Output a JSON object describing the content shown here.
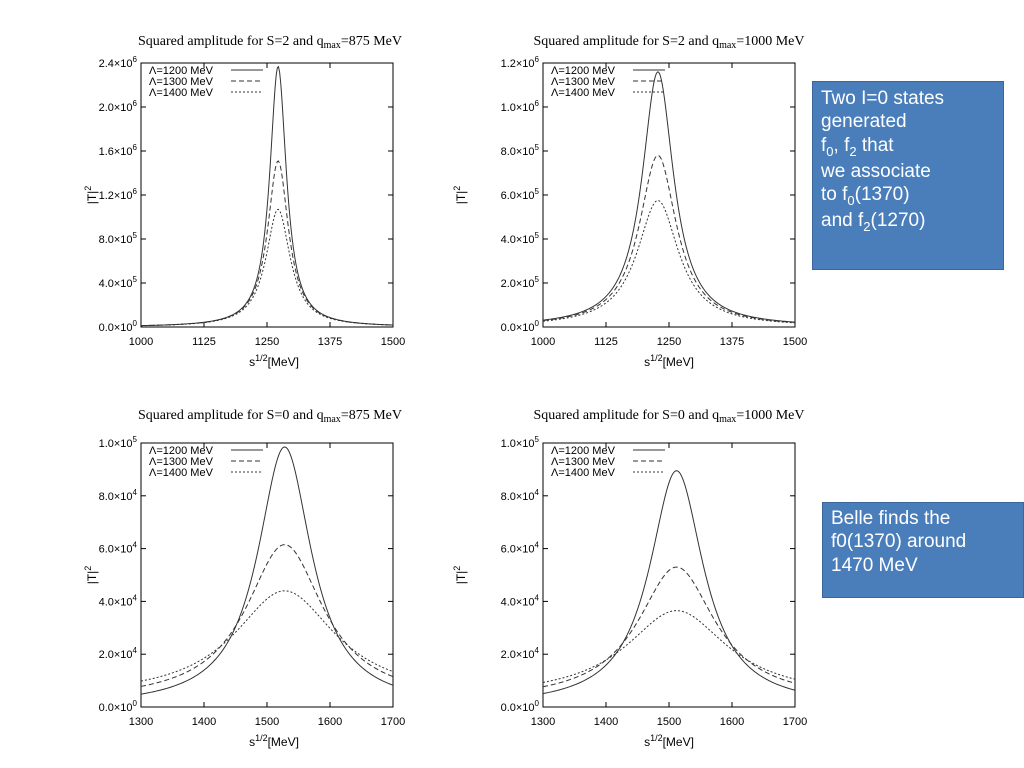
{
  "chart_data": [
    {
      "type": "line",
      "title": {
        "pre": "Squared amplitude for S=2 and q",
        "sub": "max",
        "post": "=875 MeV"
      },
      "xlabel": {
        "base": "s",
        "sup": "1/2",
        "post": "[MeV]"
      },
      "ylabel": {
        "base": "|T|",
        "sup": "2"
      },
      "xlim": [
        1000,
        1500
      ],
      "ylim": [
        0,
        2400000
      ],
      "x_ticks": [
        "1000",
        "1125",
        "1250",
        "1375",
        "1500"
      ],
      "y_ticks": [
        {
          "m": "0.0",
          "e": "0"
        },
        {
          "m": "4.0",
          "e": "5"
        },
        {
          "m": "8.0",
          "e": "5"
        },
        {
          "m": "1.2",
          "e": "6"
        },
        {
          "m": "1.6",
          "e": "6"
        },
        {
          "m": "2.0",
          "e": "6"
        },
        {
          "m": "2.4",
          "e": "6"
        }
      ],
      "legend_position": "top-left",
      "grid": false,
      "series": [
        {
          "name": "Λ=1200 MeV",
          "style": "solid",
          "peak_x": 1272,
          "peak_y": 2370000,
          "width": 20,
          "baseline": 0
        },
        {
          "name": "Λ=1300 MeV",
          "style": "dashed",
          "peak_x": 1272,
          "peak_y": 1510000,
          "width": 25,
          "baseline": 0
        },
        {
          "name": "Λ=1400 MeV",
          "style": "dotted",
          "peak_x": 1272,
          "peak_y": 1070000,
          "width": 29,
          "baseline": 0
        }
      ]
    },
    {
      "type": "line",
      "title": {
        "pre": "Squared amplitude for S=2 and q",
        "sub": "max",
        "post": "=1000 MeV"
      },
      "xlabel": {
        "base": "s",
        "sup": "1/2",
        "post": "[MeV]"
      },
      "ylabel": {
        "base": "|T|",
        "sup": "2"
      },
      "xlim": [
        1000,
        1500
      ],
      "ylim": [
        0,
        1200000
      ],
      "x_ticks": [
        "1000",
        "1125",
        "1250",
        "1375",
        "1500"
      ],
      "y_ticks": [
        {
          "m": "0.0",
          "e": "0"
        },
        {
          "m": "2.0",
          "e": "5"
        },
        {
          "m": "4.0",
          "e": "5"
        },
        {
          "m": "6.0",
          "e": "5"
        },
        {
          "m": "8.0",
          "e": "5"
        },
        {
          "m": "1.0",
          "e": "6"
        },
        {
          "m": "1.2",
          "e": "6"
        }
      ],
      "legend_position": "top-left",
      "grid": false,
      "series": [
        {
          "name": "Λ=1200 MeV",
          "style": "solid",
          "peak_x": 1228,
          "peak_y": 1160000,
          "width": 38,
          "baseline": 0
        },
        {
          "name": "Λ=1300 MeV",
          "style": "dashed",
          "peak_x": 1228,
          "peak_y": 780000,
          "width": 45,
          "baseline": 0
        },
        {
          "name": "Λ=1400 MeV",
          "style": "dotted",
          "peak_x": 1228,
          "peak_y": 575000,
          "width": 50,
          "baseline": 0
        }
      ]
    },
    {
      "type": "line",
      "title": {
        "pre": "Squared amplitude for S=0 and q",
        "sub": "max",
        "post": "=875 MeV"
      },
      "xlabel": {
        "base": "s",
        "sup": "1/2",
        "post": "[MeV]"
      },
      "ylabel": {
        "base": "|T|",
        "sup": "2"
      },
      "xlim": [
        1300,
        1700
      ],
      "ylim": [
        0,
        100000
      ],
      "x_ticks": [
        "1300",
        "1400",
        "1500",
        "1600",
        "1700"
      ],
      "y_ticks": [
        {
          "m": "0.0",
          "e": "0"
        },
        {
          "m": "2.0",
          "e": "4"
        },
        {
          "m": "4.0",
          "e": "4"
        },
        {
          "m": "6.0",
          "e": "4"
        },
        {
          "m": "8.0",
          "e": "4"
        },
        {
          "m": "1.0",
          "e": "5"
        }
      ],
      "legend_position": "top-left",
      "grid": false,
      "series": [
        {
          "name": "Λ=1200 MeV",
          "style": "solid",
          "peak_x": 1528,
          "peak_y": 98500,
          "width": 52,
          "baseline": 0
        },
        {
          "name": "Λ=1300 MeV",
          "style": "dashed",
          "peak_x": 1528,
          "peak_y": 61500,
          "width": 75,
          "baseline": 2000
        },
        {
          "name": "Λ=1400 MeV",
          "style": "dotted",
          "peak_x": 1528,
          "peak_y": 44000,
          "width": 98,
          "baseline": 3500
        }
      ]
    },
    {
      "type": "line",
      "title": {
        "pre": "Squared amplitude for S=0 and q",
        "sub": "max",
        "post": "=1000 MeV"
      },
      "xlabel": {
        "base": "s",
        "sup": "1/2",
        "post": "[MeV]"
      },
      "ylabel": {
        "base": "|T|",
        "sup": "2"
      },
      "xlim": [
        1300,
        1700
      ],
      "ylim": [
        0,
        100000
      ],
      "x_ticks": [
        "1300",
        "1400",
        "1500",
        "1600",
        "1700"
      ],
      "y_ticks": [
        {
          "m": "0.0",
          "e": "0"
        },
        {
          "m": "2.0",
          "e": "4"
        },
        {
          "m": "4.0",
          "e": "4"
        },
        {
          "m": "6.0",
          "e": "4"
        },
        {
          "m": "8.0",
          "e": "4"
        },
        {
          "m": "1.0",
          "e": "5"
        }
      ],
      "legend_position": "top-left",
      "grid": false,
      "series": [
        {
          "name": "Λ=1200 MeV",
          "style": "solid",
          "peak_x": 1512,
          "peak_y": 89500,
          "width": 52,
          "baseline": 0
        },
        {
          "name": "Λ=1300 MeV",
          "style": "dashed",
          "peak_x": 1512,
          "peak_y": 53000,
          "width": 75,
          "baseline": 2000
        },
        {
          "name": "Λ=1400 MeV",
          "style": "dotted",
          "peak_x": 1512,
          "peak_y": 36500,
          "width": 98,
          "baseline": 3500
        }
      ]
    }
  ],
  "notes": [
    {
      "lines": [
        [
          "Two I=0 states"
        ],
        [
          "generated"
        ],
        [
          "f",
          {
            "sub": "0"
          },
          ", f",
          {
            "sub": "2"
          },
          " that"
        ],
        [
          "we associate"
        ],
        [
          "to f",
          {
            "sub": "0"
          },
          "(1370)"
        ],
        [
          "and f",
          {
            "sub": "2"
          },
          "(1270)"
        ]
      ]
    },
    {
      "lines": [
        [
          "Belle finds the"
        ],
        [
          "f0(1370) around"
        ],
        [
          "1470 MeV"
        ]
      ]
    }
  ],
  "colors": {
    "note_background": "#4a7ebb",
    "note_text": "#ffffff",
    "curve": "#333333",
    "axis": "#000000"
  }
}
